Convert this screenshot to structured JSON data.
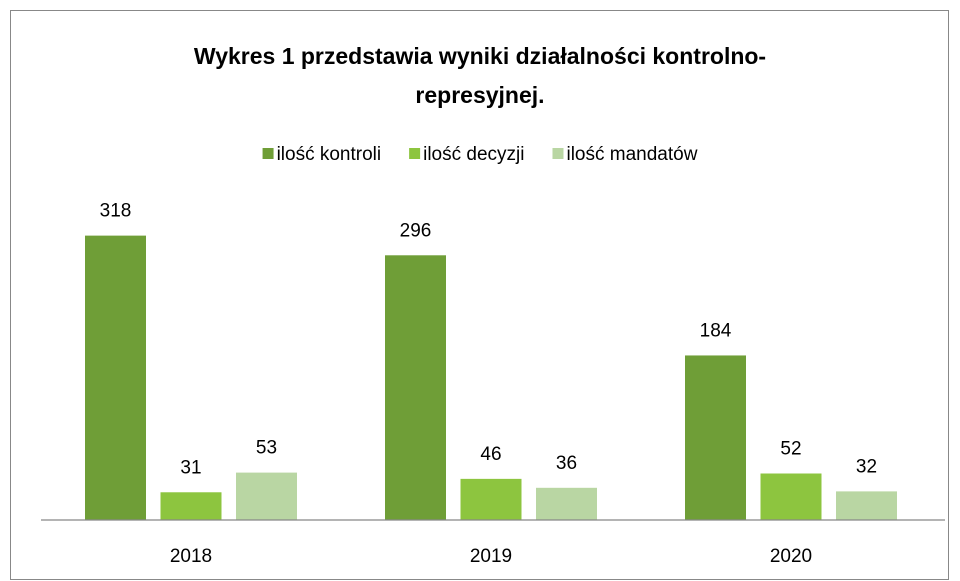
{
  "chart_data": {
    "type": "bar",
    "title": [
      "Wykres 1 przedstawia wyniki działalności kontrolno-",
      "represyjnej."
    ],
    "categories": [
      "2018",
      "2019",
      "2020"
    ],
    "series": [
      {
        "name": "ilość kontroli",
        "color": "#6f9e37",
        "values": [
          318,
          296,
          184
        ]
      },
      {
        "name": "ilość decyzji",
        "color": "#8dc53f",
        "values": [
          31,
          46,
          52
        ]
      },
      {
        "name": "ilość mandatów",
        "color": "#b9d6a3",
        "values": [
          53,
          36,
          32
        ]
      }
    ],
    "ylim": [
      0,
      350
    ],
    "legend": "top"
  }
}
